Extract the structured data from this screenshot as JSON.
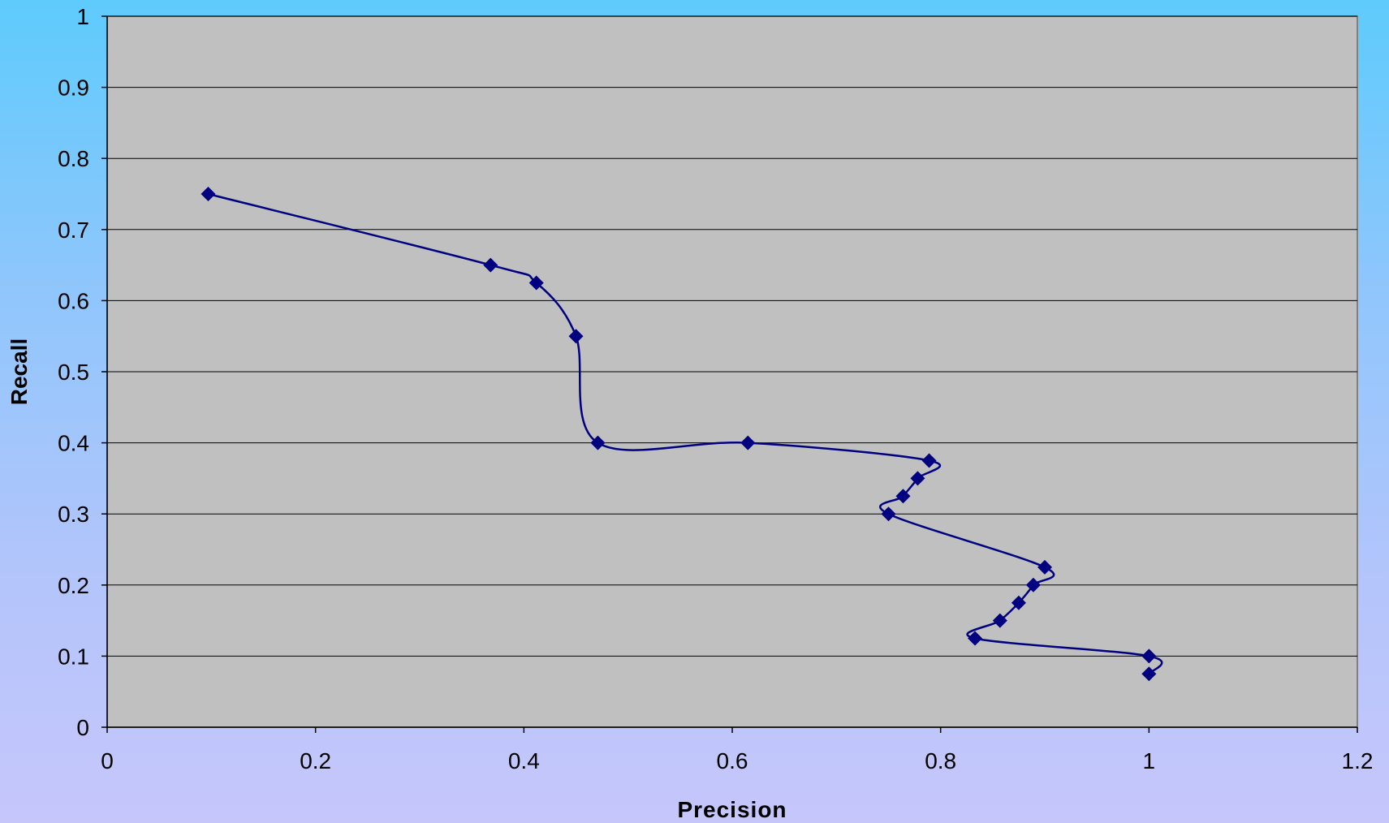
{
  "chart_data": {
    "type": "line",
    "title": "",
    "xlabel": "Precision",
    "ylabel": "Recall",
    "xlim": [
      0,
      1.2
    ],
    "ylim": [
      0,
      1
    ],
    "x_ticks": [
      "0",
      "0.2",
      "0.4",
      "0.6",
      "0.8",
      "1",
      "1.2"
    ],
    "y_ticks": [
      "0",
      "0.1",
      "0.2",
      "0.3",
      "0.4",
      "0.5",
      "0.6",
      "0.7",
      "0.8",
      "0.9",
      "1"
    ],
    "grid": "horizontal",
    "legend": "none",
    "smooth": true,
    "colors": {
      "plot_area": "#c0c0c0",
      "series": "#000080",
      "gridline": "#000000"
    },
    "series": [
      {
        "marker": "diamond",
        "x": [
          0.097,
          0.368,
          0.412,
          0.45,
          0.471,
          0.615,
          0.789,
          0.778,
          0.764,
          0.75,
          0.9,
          0.889,
          0.875,
          0.857,
          0.833,
          1.0,
          1.0
        ],
        "y": [
          0.75,
          0.65,
          0.625,
          0.55,
          0.4,
          0.4,
          0.375,
          0.35,
          0.325,
          0.3,
          0.225,
          0.2,
          0.175,
          0.15,
          0.125,
          0.1,
          0.075
        ]
      }
    ]
  }
}
